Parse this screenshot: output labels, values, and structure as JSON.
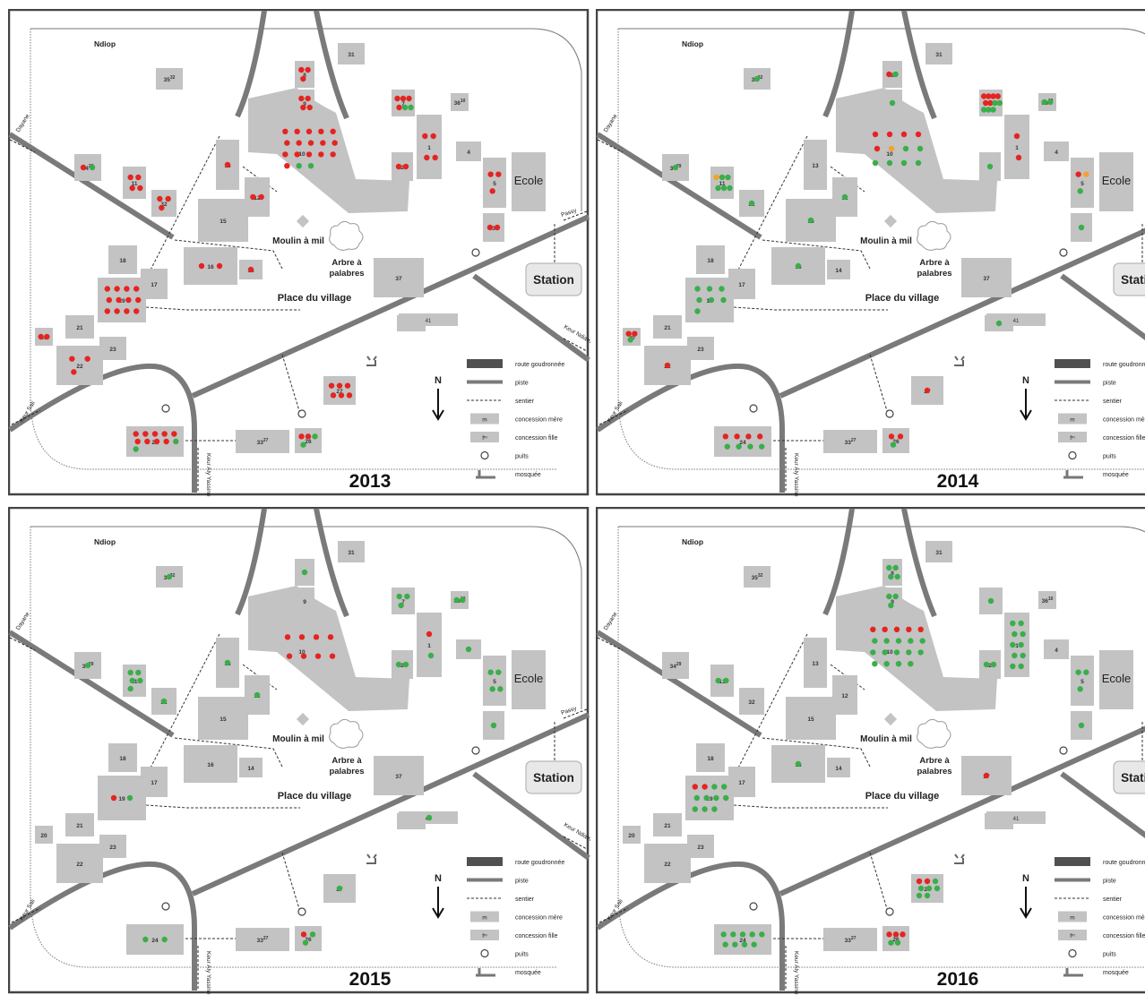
{
  "colors": {
    "block": "#c3c3c3",
    "road": "#7a7a7a",
    "paved": "#505050",
    "frame": "#444444",
    "dot_red": "#e52421",
    "dot_green": "#3aae49",
    "dot_orange": "#f3a32b"
  },
  "labels": {
    "village": "Ndiop",
    "school": "Ecole",
    "station": "Station",
    "mill": "Moulin à mil",
    "tree": "Arbre à palabres",
    "square": "Place du village",
    "north": "N",
    "road_dayane": "Dayane",
    "road_passy": "Passy",
    "road_keur_sali": "Keur Sali",
    "road_keur_ndiambo": "Keur Ndiambo",
    "road_keur_aly": "Keur Aly Yassine"
  },
  "legend": [
    {
      "symbol": "paved-road",
      "label": "route goudronnée"
    },
    {
      "symbol": "track",
      "label": "piste"
    },
    {
      "symbol": "path",
      "label": "sentier"
    },
    {
      "symbol": "mother-concession",
      "mark": "m",
      "label": "concession mère"
    },
    {
      "symbol": "daughter-concession",
      "mark": "fᵐ",
      "label": "concession fille"
    },
    {
      "symbol": "well",
      "label": "puits"
    },
    {
      "symbol": "mosque",
      "label": "mosquée"
    }
  ],
  "panels": [
    {
      "year": "2013",
      "dots": [
        {
          "id": "8",
          "r": 3,
          "g": 0,
          "o": 0
        },
        {
          "id": "9",
          "r": 4,
          "g": 0,
          "o": 0
        },
        {
          "id": "10",
          "r": 16,
          "g": 2,
          "o": 0
        },
        {
          "id": "7",
          "r": 4,
          "g": 2,
          "o": 0
        },
        {
          "id": "1",
          "r": 4,
          "g": 0,
          "o": 0
        },
        {
          "id": "2",
          "r": 2,
          "g": 0,
          "o": 0
        },
        {
          "id": "5",
          "r": 3,
          "g": 0,
          "o": 0
        },
        {
          "id": "3",
          "r": 2,
          "g": 0,
          "o": 0
        },
        {
          "id": "34",
          "r": 1,
          "g": 1,
          "o": 0
        },
        {
          "id": "11",
          "r": 4,
          "g": 0,
          "o": 0
        },
        {
          "id": "32",
          "r": 3,
          "g": 0,
          "o": 0
        },
        {
          "id": "13",
          "r": 1,
          "g": 0,
          "o": 0
        },
        {
          "id": "12",
          "r": 2,
          "g": 0,
          "o": 0
        },
        {
          "id": "16",
          "r": 2,
          "g": 0,
          "o": 0
        },
        {
          "id": "14",
          "r": 1,
          "g": 0,
          "o": 0
        },
        {
          "id": "19",
          "r": 12,
          "g": 0,
          "o": 0
        },
        {
          "id": "20",
          "r": 2,
          "g": 0,
          "o": 0
        },
        {
          "id": "22",
          "r": 3,
          "g": 0,
          "o": 0
        },
        {
          "id": "27",
          "r": 6,
          "g": 0,
          "o": 0
        },
        {
          "id": "24",
          "r": 9,
          "g": 2,
          "o": 0
        },
        {
          "id": "26",
          "r": 2,
          "g": 2,
          "o": 0
        }
      ]
    },
    {
      "year": "2014",
      "dots": [
        {
          "id": "8",
          "r": 1,
          "g": 1,
          "o": 0
        },
        {
          "id": "9",
          "r": 0,
          "g": 1,
          "o": 0
        },
        {
          "id": "10",
          "r": 5,
          "g": 6,
          "o": 1
        },
        {
          "id": "7",
          "r": 6,
          "g": 5,
          "o": 0
        },
        {
          "id": "36",
          "r": 0,
          "g": 2,
          "o": 0
        },
        {
          "id": "1",
          "r": 2,
          "g": 0,
          "o": 0
        },
        {
          "id": "2",
          "r": 0,
          "g": 1,
          "o": 0
        },
        {
          "id": "5",
          "r": 1,
          "g": 1,
          "o": 1
        },
        {
          "id": "3",
          "r": 0,
          "g": 1,
          "o": 0
        },
        {
          "id": "35",
          "r": 0,
          "g": 1,
          "o": 0
        },
        {
          "id": "34",
          "r": 0,
          "g": 1,
          "o": 0
        },
        {
          "id": "11",
          "r": 0,
          "g": 5,
          "o": 1
        },
        {
          "id": "32",
          "r": 0,
          "g": 1,
          "o": 0
        },
        {
          "id": "12",
          "r": 0,
          "g": 1,
          "o": 0
        },
        {
          "id": "15",
          "r": 0,
          "g": 1,
          "o": 0
        },
        {
          "id": "16",
          "r": 0,
          "g": 1,
          "o": 0
        },
        {
          "id": "19",
          "r": 0,
          "g": 7,
          "o": 0
        },
        {
          "id": "20",
          "r": 2,
          "g": 1,
          "o": 0
        },
        {
          "id": "22",
          "r": 1,
          "g": 0,
          "o": 0
        },
        {
          "id": "27",
          "r": 1,
          "g": 0,
          "o": 0
        },
        {
          "id": "24",
          "r": 4,
          "g": 4,
          "o": 0
        },
        {
          "id": "26",
          "r": 2,
          "g": 1,
          "o": 0
        },
        {
          "id": "40",
          "r": 0,
          "g": 1,
          "o": 0
        }
      ]
    },
    {
      "year": "2015",
      "dots": [
        {
          "id": "8",
          "r": 0,
          "g": 1,
          "o": 0
        },
        {
          "id": "10",
          "r": 8,
          "g": 0,
          "o": 0
        },
        {
          "id": "7",
          "r": 0,
          "g": 3,
          "o": 0
        },
        {
          "id": "36",
          "r": 0,
          "g": 2,
          "o": 0
        },
        {
          "id": "1",
          "r": 1,
          "g": 1,
          "o": 0
        },
        {
          "id": "2",
          "r": 0,
          "g": 2,
          "o": 0
        },
        {
          "id": "4",
          "r": 0,
          "g": 1,
          "o": 0
        },
        {
          "id": "5",
          "r": 0,
          "g": 4,
          "o": 0
        },
        {
          "id": "3",
          "r": 0,
          "g": 1,
          "o": 0
        },
        {
          "id": "35",
          "r": 0,
          "g": 1,
          "o": 0
        },
        {
          "id": "34",
          "r": 0,
          "g": 1,
          "o": 0
        },
        {
          "id": "11",
          "r": 0,
          "g": 5,
          "o": 0
        },
        {
          "id": "32",
          "r": 0,
          "g": 1,
          "o": 0
        },
        {
          "id": "13",
          "r": 0,
          "g": 1,
          "o": 0
        },
        {
          "id": "12",
          "r": 0,
          "g": 1,
          "o": 0
        },
        {
          "id": "19",
          "r": 1,
          "g": 1,
          "o": 0
        },
        {
          "id": "27",
          "r": 0,
          "g": 1,
          "o": 0
        },
        {
          "id": "24",
          "r": 0,
          "g": 2,
          "o": 0
        },
        {
          "id": "26",
          "r": 1,
          "g": 2,
          "o": 0
        },
        {
          "id": "41",
          "r": 0,
          "g": 1,
          "o": 0
        }
      ]
    },
    {
      "year": "2016",
      "dots": [
        {
          "id": "8",
          "r": 0,
          "g": 4,
          "o": 0
        },
        {
          "id": "9",
          "r": 0,
          "g": 3,
          "o": 0
        },
        {
          "id": "10",
          "r": 5,
          "g": 14,
          "o": 0
        },
        {
          "id": "7",
          "r": 0,
          "g": 1,
          "o": 0
        },
        {
          "id": "1",
          "r": 0,
          "g": 10,
          "o": 0
        },
        {
          "id": "2",
          "r": 0,
          "g": 2,
          "o": 0
        },
        {
          "id": "5",
          "r": 0,
          "g": 3,
          "o": 0
        },
        {
          "id": "3",
          "r": 0,
          "g": 1,
          "o": 0
        },
        {
          "id": "35",
          "r": 0,
          "g": 0,
          "o": 0
        },
        {
          "id": "11",
          "r": 0,
          "g": 2,
          "o": 0
        },
        {
          "id": "16",
          "r": 0,
          "g": 1,
          "o": 0
        },
        {
          "id": "19",
          "r": 2,
          "g": 9,
          "o": 0
        },
        {
          "id": "37",
          "r": 1,
          "g": 0,
          "o": 0
        },
        {
          "id": "27",
          "r": 2,
          "g": 6,
          "o": 0
        },
        {
          "id": "24",
          "r": 0,
          "g": 9,
          "o": 0
        },
        {
          "id": "26",
          "r": 3,
          "g": 2,
          "o": 0
        }
      ]
    }
  ]
}
